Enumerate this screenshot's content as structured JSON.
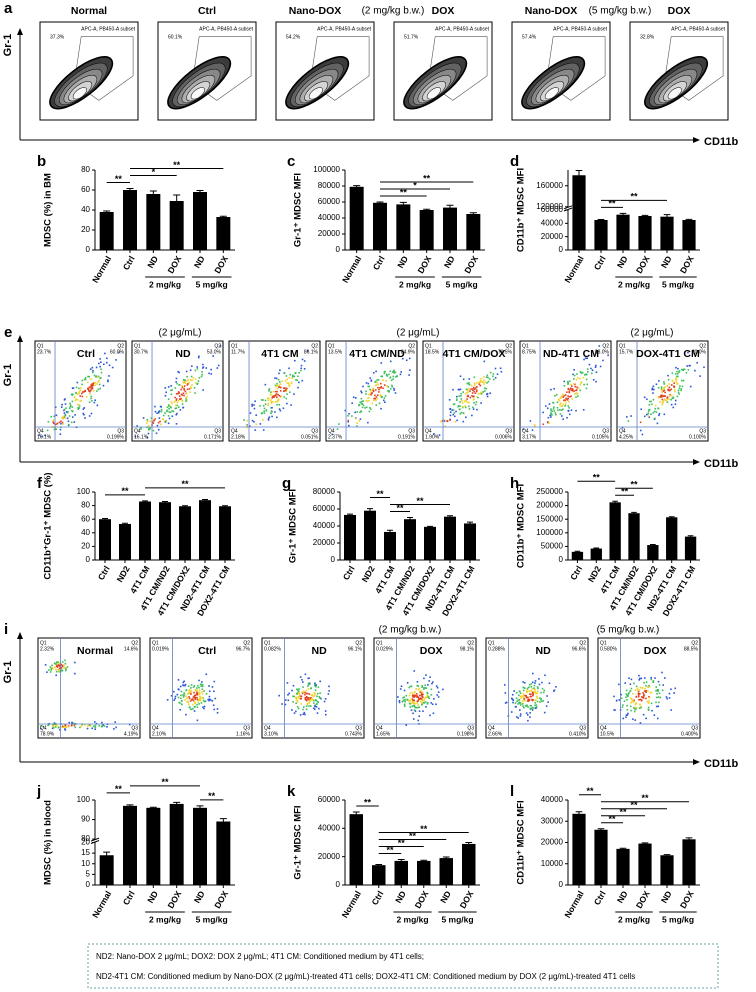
{
  "chart_data": [
    {
      "type": "bar",
      "letter": "b",
      "y_label": "MDSC (%) in BM",
      "categories": [
        "Normal",
        "Ctrl",
        "ND",
        "DOX",
        "ND",
        "DOX"
      ],
      "values": [
        38,
        60,
        56,
        49,
        58,
        33
      ],
      "errors": [
        1,
        1.5,
        3,
        6,
        1.5,
        0.8
      ],
      "ylim": [
        0,
        80
      ],
      "yticks": [
        0,
        20,
        40,
        60,
        80
      ],
      "color": "#000000",
      "groups": [
        {
          "label": "2 mg/kg",
          "span": [
            2,
            3
          ]
        },
        {
          "label": "5 mg/kg",
          "span": [
            4,
            5
          ]
        }
      ],
      "comparisons": [
        {
          "pair": [
            0,
            1
          ],
          "label": "**"
        },
        {
          "pair": [
            1,
            3
          ],
          "label": "*"
        },
        {
          "pair": [
            1,
            5
          ],
          "label": "**"
        }
      ]
    },
    {
      "type": "bar",
      "letter": "c",
      "y_label": "Gr-1⁺ MDSC MFI",
      "categories": [
        "Normal",
        "Ctrl",
        "ND",
        "DOX",
        "ND",
        "DOX"
      ],
      "values": [
        79000,
        59000,
        57000,
        50000,
        53000,
        45000
      ],
      "errors": [
        1500,
        1000,
        2500,
        1000,
        3000,
        1500
      ],
      "ylim": [
        0,
        100000
      ],
      "yticks": [
        0,
        20000,
        40000,
        60000,
        80000,
        100000
      ],
      "color": "#000000",
      "groups": [
        {
          "label": "2 mg/kg",
          "span": [
            2,
            3
          ]
        },
        {
          "label": "5 mg/kg",
          "span": [
            4,
            5
          ]
        }
      ],
      "comparisons": [
        {
          "pair": [
            1,
            3
          ],
          "label": "**"
        },
        {
          "pair": [
            1,
            4
          ],
          "label": "*"
        },
        {
          "pair": [
            1,
            5
          ],
          "label": "**"
        }
      ]
    },
    {
      "type": "bar",
      "letter": "d",
      "y_label": "CD11b⁺ MDSC MFI",
      "categories": [
        "Normal",
        "Ctrl",
        "ND",
        "DOX",
        "ND",
        "DOX"
      ],
      "values": [
        180000,
        45000,
        53000,
        51000,
        50000,
        45000
      ],
      "errors": [
        9000,
        800,
        2000,
        1000,
        3000,
        1000
      ],
      "ylim": [
        0,
        190000
      ],
      "yticks": [
        0,
        20000,
        40000,
        60000,
        120000,
        160000
      ],
      "ybreak": [
        60000,
        120000
      ],
      "color": "#000000",
      "groups": [
        {
          "label": "2 mg/kg",
          "span": [
            2,
            3
          ]
        },
        {
          "label": "5 mg/kg",
          "span": [
            4,
            5
          ]
        }
      ],
      "comparisons": [
        {
          "pair": [
            1,
            2
          ],
          "label": "**"
        },
        {
          "pair": [
            1,
            4
          ],
          "label": "**"
        }
      ]
    },
    {
      "type": "bar",
      "letter": "f",
      "y_label": "CD11b⁺Gr-1⁺ MDSC (%)",
      "categories": [
        "Ctrl",
        "ND2",
        "4T1 CM",
        "4T1 CM/ND2",
        "4T1 CM/DOX2",
        "ND2-4T1 CM",
        "DOX2-4T1 CM"
      ],
      "values": [
        60,
        53,
        86,
        85,
        79,
        88,
        79
      ],
      "errors": [
        1,
        1,
        1,
        1,
        0.8,
        1,
        0.8
      ],
      "ylim": [
        0,
        100
      ],
      "yticks": [
        0,
        20,
        40,
        60,
        80,
        100
      ],
      "color": "#000000",
      "comparisons": [
        {
          "pair": [
            0,
            2
          ],
          "label": "**"
        },
        {
          "pair": [
            2,
            6
          ],
          "label": "**"
        }
      ]
    },
    {
      "type": "bar",
      "letter": "g",
      "y_label": "Gr-1⁺ MDSC MFI",
      "categories": [
        "Ctrl",
        "ND2",
        "4T1 CM",
        "4T1 CM/ND2",
        "4T1 CM/DOX2",
        "ND2-4T1 CM",
        "DOX2-4T1 CM"
      ],
      "values": [
        53000,
        58000,
        33000,
        48000,
        39000,
        51000,
        43000
      ],
      "errors": [
        1000,
        2500,
        2000,
        2000,
        500,
        1000,
        1500
      ],
      "ylim": [
        0,
        80000
      ],
      "yticks": [
        0,
        20000,
        40000,
        60000,
        80000
      ],
      "color": "#000000",
      "comparisons": [
        {
          "pair": [
            2,
            3
          ],
          "label": "**"
        },
        {
          "pair": [
            2,
            5
          ],
          "label": "**"
        },
        {
          "pair": [
            1,
            2
          ],
          "label": "**"
        }
      ]
    },
    {
      "type": "bar",
      "letter": "h",
      "y_label": "CD11b⁺ MDSC MFI",
      "categories": [
        "Ctrl",
        "ND2",
        "4T1 CM",
        "4T1 CM/ND2",
        "4T1 CM/DOX2",
        "ND2-4T1 CM",
        "DOX2-4T1 CM"
      ],
      "values": [
        30000,
        42000,
        212000,
        172000,
        55000,
        157000,
        86000
      ],
      "errors": [
        2000,
        2000,
        4000,
        3000,
        2000,
        2000,
        3000
      ],
      "ylim": [
        0,
        250000
      ],
      "yticks": [
        0,
        50000,
        100000,
        150000,
        200000,
        250000
      ],
      "color": "#000000",
      "comparisons": [
        {
          "pair": [
            2,
            3
          ],
          "label": "**"
        },
        {
          "pair": [
            2,
            4
          ],
          "label": "**"
        },
        {
          "pair": [
            0,
            2
          ],
          "label": "**"
        }
      ]
    },
    {
      "type": "bar",
      "letter": "j",
      "y_label": "MDSC (%) in blood",
      "categories": [
        "Normal",
        "Ctrl",
        "ND",
        "DOX",
        "ND",
        "DOX"
      ],
      "values": [
        14,
        97,
        96,
        98,
        96,
        89
      ],
      "errors": [
        1.5,
        0.5,
        0.3,
        0.8,
        1,
        1.5
      ],
      "ylim": [
        0,
        100
      ],
      "yticks": [
        0,
        5,
        10,
        15,
        20,
        80,
        90,
        100
      ],
      "ybreak": [
        20,
        80
      ],
      "color": "#000000",
      "groups": [
        {
          "label": "2 mg/kg",
          "span": [
            2,
            3
          ]
        },
        {
          "label": "5 mg/kg",
          "span": [
            4,
            5
          ]
        }
      ],
      "comparisons": [
        {
          "pair": [
            4,
            5
          ],
          "label": "**"
        },
        {
          "pair": [
            0,
            1
          ],
          "label": "**"
        },
        {
          "pair": [
            1,
            4
          ],
          "label": "**"
        }
      ]
    },
    {
      "type": "bar",
      "letter": "k",
      "y_label": "Gr-1⁺ MDSC MFI",
      "categories": [
        "Normal",
        "Ctrl",
        "ND",
        "DOX",
        "ND",
        "DOX"
      ],
      "values": [
        50000,
        14000,
        17000,
        17000,
        19000,
        29000
      ],
      "errors": [
        1500,
        500,
        1000,
        500,
        800,
        1000
      ],
      "ylim": [
        0,
        60000
      ],
      "yticks": [
        0,
        20000,
        40000,
        60000
      ],
      "color": "#000000",
      "groups": [
        {
          "label": "2 mg/kg",
          "span": [
            2,
            3
          ]
        },
        {
          "label": "5 mg/kg",
          "span": [
            4,
            5
          ]
        }
      ],
      "comparisons": [
        {
          "pair": [
            1,
            2
          ],
          "label": "**"
        },
        {
          "pair": [
            1,
            3
          ],
          "label": "**"
        },
        {
          "pair": [
            1,
            4
          ],
          "label": "**"
        },
        {
          "pair": [
            1,
            5
          ],
          "label": "**"
        },
        {
          "pair": [
            0,
            1
          ],
          "label": "**"
        }
      ]
    },
    {
      "type": "bar",
      "letter": "l",
      "y_label": "CD11b⁺ MDSC MFI",
      "categories": [
        "Normal",
        "Ctrl",
        "ND",
        "DOX",
        "ND",
        "DOX"
      ],
      "values": [
        33500,
        26000,
        17000,
        19500,
        14000,
        21500
      ],
      "errors": [
        1000,
        500,
        300,
        300,
        300,
        700
      ],
      "ylim": [
        0,
        40000
      ],
      "yticks": [
        0,
        10000,
        20000,
        30000,
        40000
      ],
      "color": "#000000",
      "groups": [
        {
          "label": "2 mg/kg",
          "span": [
            2,
            3
          ]
        },
        {
          "label": "5 mg/kg",
          "span": [
            4,
            5
          ]
        }
      ],
      "comparisons": [
        {
          "pair": [
            1,
            2
          ],
          "label": "**"
        },
        {
          "pair": [
            1,
            3
          ],
          "label": "**"
        },
        {
          "pair": [
            1,
            4
          ],
          "label": "**"
        },
        {
          "pair": [
            1,
            5
          ],
          "label": "**"
        },
        {
          "pair": [
            0,
            1
          ],
          "label": "**"
        }
      ]
    }
  ],
  "flow_panels": [
    {
      "letter": "a",
      "y_label": "Gr-1",
      "x_label": "CD11b",
      "notes": [
        "(2 mg/kg b.w.)",
        "(5 mg/kg b.w.)"
      ],
      "gate_label": "APC-A, PB450-A subset",
      "panels": [
        {
          "title": "Normal",
          "gate": "37.3%"
        },
        {
          "title": "Ctrl",
          "gate": "60.1%"
        },
        {
          "title": "Nano-DOX",
          "gate": "54.2%"
        },
        {
          "title": "DOX",
          "gate": "51.7%"
        },
        {
          "title": "Nano-DOX",
          "gate": "57.4%"
        },
        {
          "title": "DOX",
          "gate": "32.8%"
        }
      ]
    },
    {
      "letter": "e",
      "y_label": "Gr-1",
      "x_label": "CD11b",
      "notes": [
        "(2 μg/mL)",
        "(2 μg/mL)",
        "(2 μg/mL)"
      ],
      "quadrant_names": [
        "Q1",
        "Q2",
        "Q3",
        "Q4"
      ],
      "panels": [
        {
          "title": "Ctrl",
          "q": [
            "23.7%",
            "60.0%",
            "0.199%",
            "16.1%"
          ]
        },
        {
          "title": "ND",
          "q": [
            "30.7%",
            "53.0%",
            "0.171%",
            "16.1%"
          ]
        },
        {
          "title": "4T1 CM",
          "q": [
            "11.7%",
            "86.1%",
            "0.051%",
            "2.18%"
          ]
        },
        {
          "title": "4T1 CM/ND",
          "q": [
            "13.5%",
            "84.9%",
            "0.191%",
            "2.37%"
          ]
        },
        {
          "title": "4T1 CM/DOX",
          "q": [
            "18.5%",
            "79.5%",
            "0.006%",
            "1.90%"
          ]
        },
        {
          "title": "ND-4T1 CM",
          "q": [
            "8.75%",
            "88.0%",
            "0.105%",
            "3.17%"
          ]
        },
        {
          "title": "DOX-4T1 CM",
          "q": [
            "15.7%",
            "80.0%",
            "0.100%",
            "4.25%"
          ]
        }
      ]
    },
    {
      "letter": "i",
      "y_label": "Gr-1",
      "x_label": "CD11b",
      "notes": [
        "(2 mg/kg b.w.)",
        "(5 mg/kg b.w.)"
      ],
      "quadrant_names": [
        "Q1",
        "Q2",
        "Q3",
        "Q4"
      ],
      "panels": [
        {
          "title": "Normal",
          "q": [
            "2.32%",
            "14.6%",
            "4.19%",
            "78.9%"
          ]
        },
        {
          "title": "Ctrl",
          "q": [
            "0.019%",
            "96.7%",
            "1.16%",
            "2.10%"
          ]
        },
        {
          "title": "ND",
          "q": [
            "0.082%",
            "96.1%",
            "0.743%",
            "3.10%"
          ]
        },
        {
          "title": "DOX",
          "q": [
            "0.029%",
            "98.1%",
            "0.198%",
            "1.65%"
          ]
        },
        {
          "title": "ND",
          "q": [
            "0.288%",
            "96.6%",
            "0.410%",
            "2.66%"
          ]
        },
        {
          "title": "DOX",
          "q": [
            "0.580%",
            "88.5%",
            "0.400%",
            "10.5%"
          ]
        }
      ]
    }
  ],
  "footnote": [
    "ND2: Nano-DOX 2 μg/mL;  DOX2: DOX 2 μg/mL;  4T1 CM: Conditioned medium by 4T1 cells;",
    "ND2-4T1 CM: Conditioned medium by Nano-DOX (2 μg/mL)-treated 4T1 cells;  DOX2-4T1 CM: Conditioned medium by DOX (2 μg/mL)-treated 4T1 cells"
  ]
}
